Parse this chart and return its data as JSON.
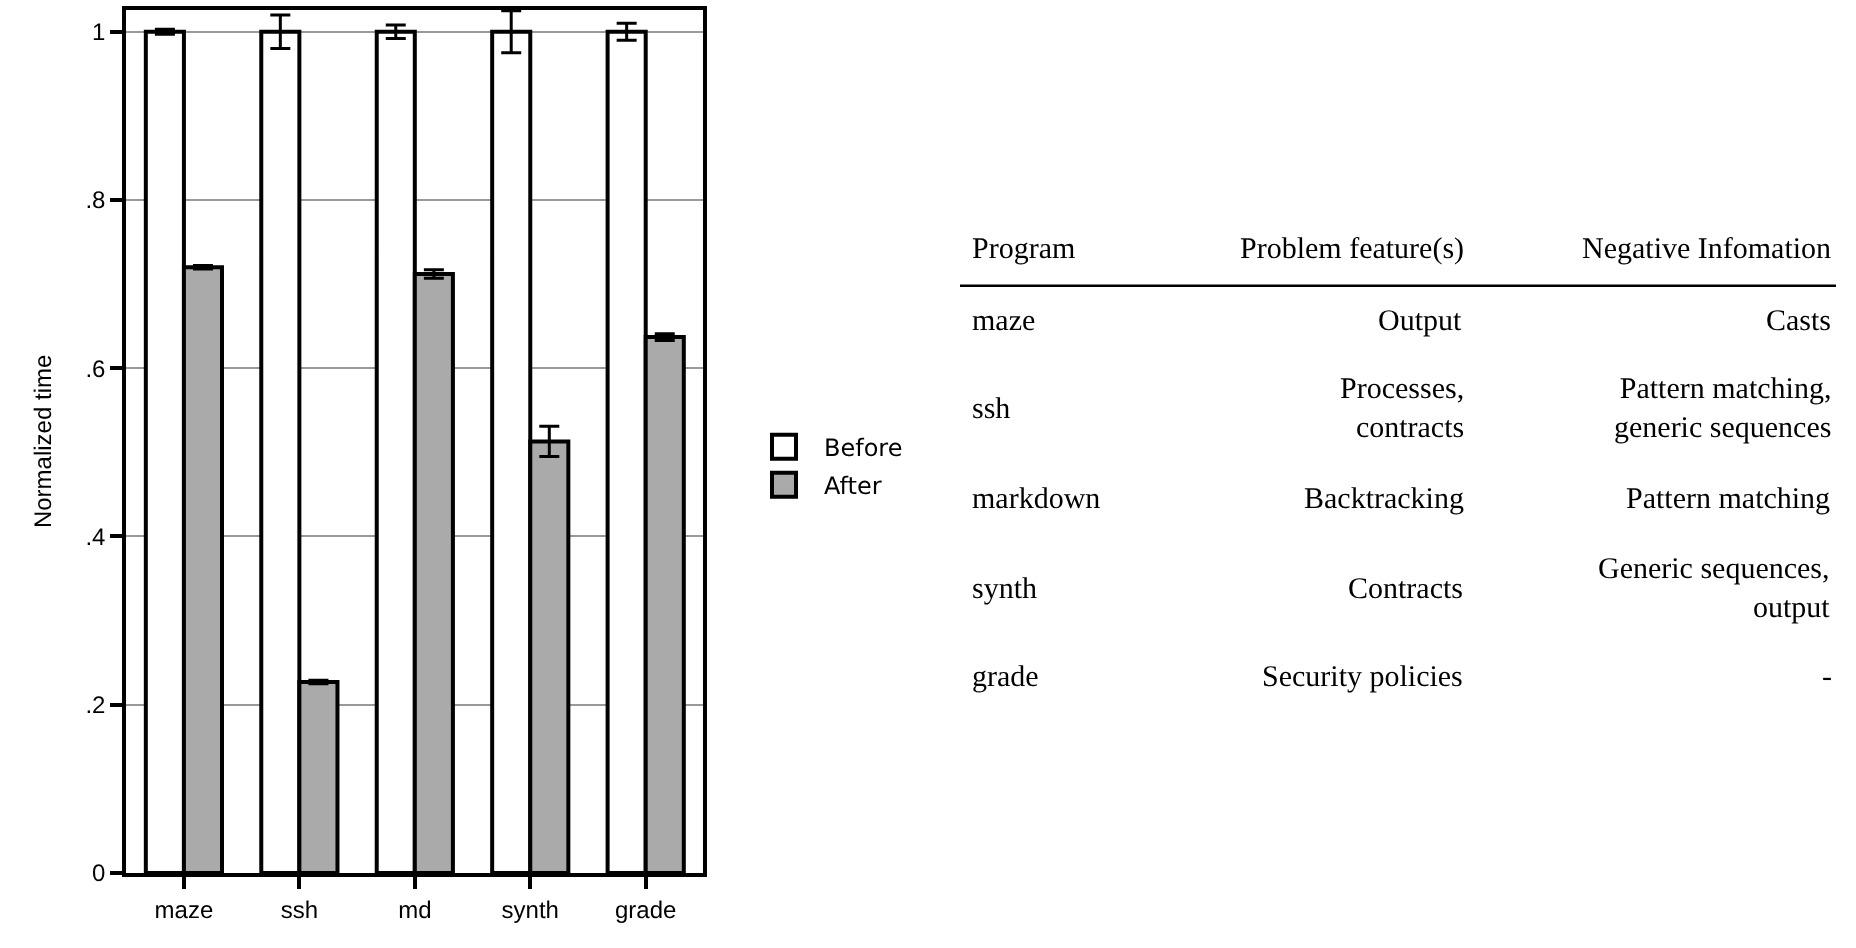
{
  "chart_data": [
    {
      "type": "bar",
      "ylabel": "Normalized time",
      "categories": [
        "maze",
        "ssh",
        "md",
        "synth",
        "grade"
      ],
      "series": [
        {
          "name": "Before",
          "color": "#ffffff",
          "values": [
            1,
            1,
            1,
            1,
            1
          ],
          "errors": [
            0.003,
            0.02,
            0.008,
            0.025,
            0.01
          ]
        },
        {
          "name": "After",
          "color": "#aaaaaa",
          "values": [
            0.72,
            0.227,
            0.712,
            0.513,
            0.637
          ],
          "errors": [
            0.002,
            0.002,
            0.005,
            0.018,
            0.004
          ]
        }
      ],
      "ylim": [
        0,
        1.026
      ],
      "yticks": [
        0,
        {
          "value": 0.2,
          "label": ".2"
        },
        {
          "value": 0.4,
          "label": ".4"
        },
        {
          "value": 0.6,
          "label": ".6"
        },
        {
          "value": 0.8,
          "label": ".8"
        },
        1
      ],
      "grid": "y",
      "legend": "right"
    },
    {
      "type": "other",
      "categories": [
        "Program",
        "Problem feature(s)",
        "Negative Infomation"
      ],
      "cells": [
        [
          "maze",
          "Output",
          "Casts"
        ],
        [
          "ssh",
          "Processes,\ncontracts",
          "Pattern matching,\ngeneric sequences"
        ],
        [
          "markdown",
          "Backtracking",
          "Pattern matching"
        ],
        [
          "synth",
          "Contracts",
          "Generic sequences,\noutput"
        ],
        [
          "grade",
          "Security policies",
          "-"
        ]
      ]
    }
  ]
}
